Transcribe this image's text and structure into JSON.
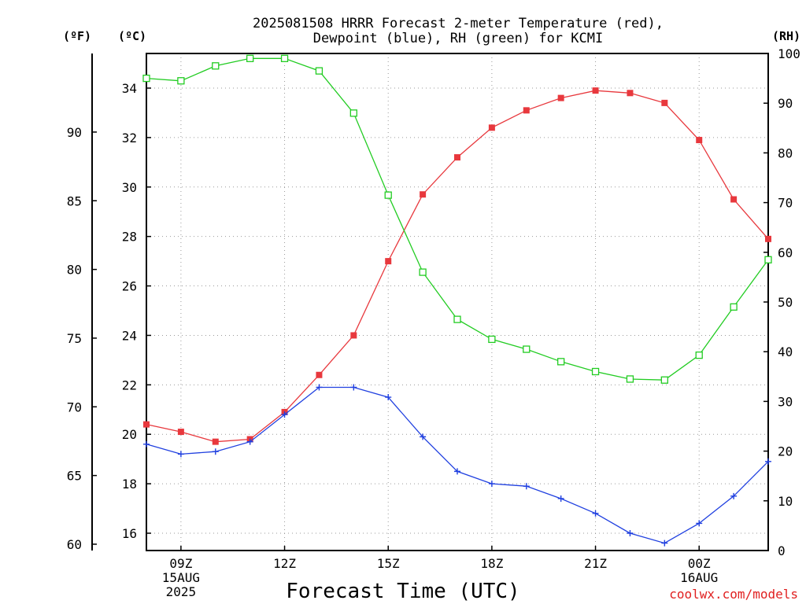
{
  "chart_data": {
    "type": "line",
    "title_lines": [
      "2025081508 HRRR Forecast 2-meter Temperature (red),",
      "Dewpoint (blue), RH (green) for KCMI"
    ],
    "unit_labels": {
      "fahrenheit": "(ºF)",
      "celsius": "(ºC)",
      "rh": "(RH)"
    },
    "xlabel": "Forecast Time (UTC)",
    "credit": "coolwx.com/models",
    "x_ticks": [
      {
        "hour": 9,
        "lines": [
          "09Z",
          "15AUG",
          "2025"
        ]
      },
      {
        "hour": 12,
        "lines": [
          "12Z"
        ]
      },
      {
        "hour": 15,
        "lines": [
          "15Z"
        ]
      },
      {
        "hour": 18,
        "lines": [
          "18Z"
        ]
      },
      {
        "hour": 21,
        "lines": [
          "21Z"
        ]
      },
      {
        "hour": 24,
        "lines": [
          "00Z",
          "16AUG"
        ]
      }
    ],
    "x_range_hours": [
      8,
      26
    ],
    "celsius_axis": {
      "range": [
        15.3,
        35.4
      ],
      "ticks": [
        16,
        18,
        20,
        22,
        24,
        26,
        28,
        30,
        32,
        34
      ]
    },
    "fahrenheit_axis": {
      "ticks": [
        60,
        65,
        70,
        75,
        80,
        85,
        90
      ]
    },
    "rh_axis": {
      "range": [
        0,
        100
      ],
      "ticks": [
        0,
        10,
        20,
        30,
        40,
        50,
        60,
        70,
        80,
        90,
        100
      ]
    },
    "x": [
      8,
      9,
      10,
      11,
      12,
      13,
      14,
      15,
      16,
      17,
      18,
      19,
      20,
      21,
      22,
      23,
      24,
      25,
      26
    ],
    "series": [
      {
        "name": "Temperature",
        "axis": "celsius",
        "color": "#e8383d",
        "marker": "filled-square",
        "values": [
          20.4,
          20.1,
          19.7,
          19.8,
          20.9,
          22.4,
          24.0,
          27.0,
          29.7,
          31.2,
          32.4,
          33.1,
          33.6,
          33.9,
          33.8,
          33.4,
          31.9,
          29.5,
          27.9
        ]
      },
      {
        "name": "Dewpoint",
        "axis": "celsius",
        "color": "#2040e0",
        "marker": "plus",
        "values": [
          19.6,
          19.2,
          19.3,
          19.7,
          20.8,
          21.9,
          21.9,
          21.5,
          19.9,
          18.5,
          18.0,
          17.9,
          17.4,
          16.8,
          16.0,
          15.6,
          16.4,
          17.5,
          18.9
        ]
      },
      {
        "name": "RH",
        "axis": "rh",
        "color": "#22cc22",
        "marker": "open-square",
        "values": [
          95,
          94.5,
          97.5,
          99,
          99,
          96.5,
          88,
          71.5,
          56,
          46.5,
          42.5,
          40.5,
          38,
          36,
          34.5,
          34.3,
          39.3,
          49,
          58.5
        ]
      }
    ]
  }
}
